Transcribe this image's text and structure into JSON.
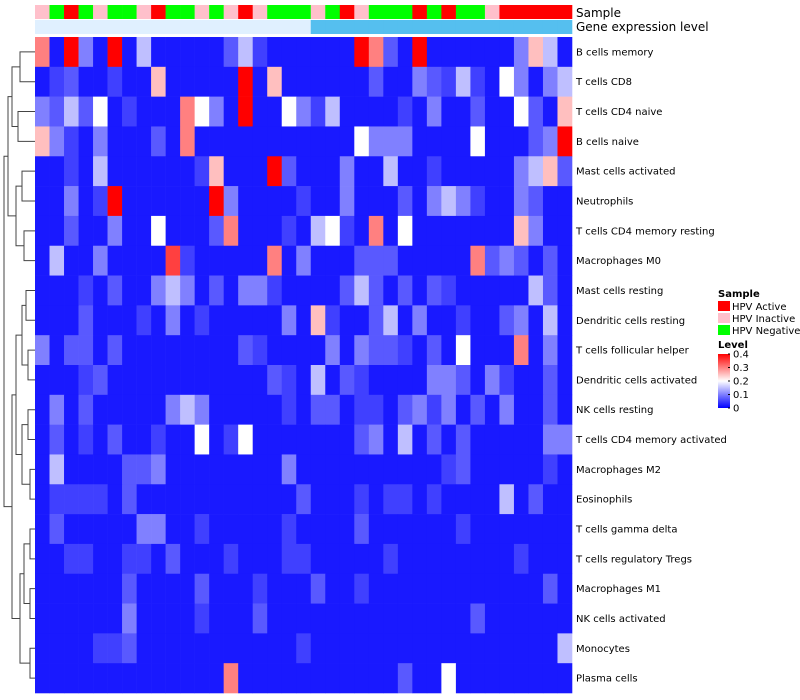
{
  "chart_data": {
    "type": "heatmap",
    "title": "",
    "annotation_rows": [
      {
        "label": "Sample",
        "values": [
          "HPV Inactive",
          "HPV Negative",
          "HPV Active",
          "HPV Negative",
          "HPV Inactive",
          "HPV Negative",
          "HPV Negative",
          "HPV Inactive",
          "HPV Active",
          "HPV Negative",
          "HPV Negative",
          "HPV Inactive",
          "HPV Negative",
          "HPV Inactive",
          "HPV Active",
          "HPV Inactive",
          "HPV Negative",
          "HPV Negative",
          "HPV Negative",
          "HPV Inactive",
          "HPV Negative",
          "HPV Active",
          "HPV Inactive",
          "HPV Negative",
          "HPV Negative",
          "HPV Negative",
          "HPV Active",
          "HPV Negative",
          "HPV Active",
          "HPV Negative",
          "HPV Negative",
          "HPV Inactive",
          "HPV Active",
          "HPV Active",
          "HPV Active",
          "HPV Active",
          "HPV Active"
        ]
      },
      {
        "label": "Gene expression level",
        "values": [
          "low",
          "low",
          "low",
          "low",
          "low",
          "low",
          "low",
          "low",
          "low",
          "low",
          "low",
          "low",
          "low",
          "low",
          "low",
          "low",
          "low",
          "low",
          "low",
          "high",
          "high",
          "high",
          "high",
          "high",
          "high",
          "high",
          "high",
          "high",
          "high",
          "high",
          "high",
          "high",
          "high",
          "high",
          "high",
          "high",
          "high"
        ]
      }
    ],
    "rows": [
      "B cells memory",
      "T cells CD8",
      "T cells CD4 naive",
      "B cells naive",
      "Mast cells activated",
      "Neutrophils",
      "T cells CD4 memory resting",
      "Macrophages M0",
      "Mast cells resting",
      "Dendritic cells resting",
      "T cells follicular helper",
      "Dendritic cells activated",
      "NK cells resting",
      "T cells CD4 memory activated",
      "Macrophages M2",
      "Eosinophils",
      "T cells gamma delta",
      "T cells regulatory  Tregs",
      "Macrophages M1",
      "NK cells activated",
      "Monocytes",
      "Plasma cells"
    ],
    "columns": 37,
    "values": [
      [
        0.3,
        0.02,
        0.4,
        0.1,
        0.02,
        0.4,
        0.02,
        0.15,
        0.02,
        0.02,
        0.02,
        0.02,
        0.02,
        0.07,
        0.15,
        0.05,
        0.02,
        0.02,
        0.02,
        0.02,
        0.02,
        0.02,
        0.4,
        0.3,
        0.07,
        0.02,
        0.4,
        0.02,
        0.02,
        0.02,
        0.02,
        0.02,
        0.02,
        0.1,
        0.25,
        0.15,
        0.02
      ],
      [
        0.02,
        0.05,
        0.07,
        0.02,
        0.02,
        0.05,
        0.02,
        0.02,
        0.25,
        0.02,
        0.02,
        0.02,
        0.02,
        0.02,
        0.4,
        0.02,
        0.25,
        0.02,
        0.02,
        0.02,
        0.02,
        0.02,
        0.02,
        0.07,
        0.02,
        0.02,
        0.1,
        0.07,
        0.05,
        0.15,
        0.05,
        0.02,
        0.2,
        0.1,
        0.02,
        0.1,
        0.15
      ],
      [
        0.1,
        0.07,
        0.15,
        0.07,
        0.2,
        0.02,
        0.05,
        0.02,
        0.02,
        0.02,
        0.3,
        0.2,
        0.1,
        0.02,
        0.4,
        0.02,
        0.02,
        0.2,
        0.1,
        0.05,
        0.15,
        0.02,
        0.02,
        0.02,
        0.02,
        0.05,
        0.02,
        0.1,
        0.02,
        0.02,
        0.07,
        0.02,
        0.02,
        0.2,
        0.07,
        0.02,
        0.25
      ],
      [
        0.25,
        0.1,
        0.05,
        0.02,
        0.1,
        0.02,
        0.02,
        0.02,
        0.07,
        0.02,
        0.3,
        0.02,
        0.02,
        0.02,
        0.02,
        0.02,
        0.02,
        0.02,
        0.02,
        0.02,
        0.02,
        0.02,
        0.2,
        0.1,
        0.1,
        0.1,
        0.02,
        0.02,
        0.02,
        0.02,
        0.2,
        0.02,
        0.02,
        0.02,
        0.07,
        0.1,
        0.4
      ],
      [
        0.02,
        0.02,
        0.05,
        0.02,
        0.15,
        0.02,
        0.02,
        0.02,
        0.02,
        0.02,
        0.02,
        0.05,
        0.25,
        0.02,
        0.02,
        0.02,
        0.4,
        0.07,
        0.02,
        0.02,
        0.02,
        0.1,
        0.02,
        0.02,
        0.15,
        0.02,
        0.02,
        0.05,
        0.02,
        0.02,
        0.02,
        0.02,
        0.02,
        0.1,
        0.15,
        0.25,
        0.07
      ],
      [
        0.02,
        0.02,
        0.1,
        0.02,
        0.05,
        0.4,
        0.02,
        0.02,
        0.02,
        0.02,
        0.02,
        0.02,
        0.4,
        0.1,
        0.02,
        0.02,
        0.02,
        0.02,
        0.05,
        0.02,
        0.02,
        0.1,
        0.02,
        0.02,
        0.02,
        0.07,
        0.02,
        0.1,
        0.15,
        0.1,
        0.05,
        0.02,
        0.02,
        0.1,
        0.07,
        0.02,
        0.02
      ],
      [
        0.02,
        0.02,
        0.07,
        0.02,
        0.02,
        0.1,
        0.02,
        0.02,
        0.2,
        0.02,
        0.02,
        0.02,
        0.07,
        0.3,
        0.02,
        0.02,
        0.02,
        0.05,
        0.02,
        0.15,
        0.2,
        0.05,
        0.02,
        0.3,
        0.02,
        0.2,
        0.02,
        0.02,
        0.02,
        0.02,
        0.02,
        0.02,
        0.02,
        0.25,
        0.1,
        0.02,
        0.02
      ],
      [
        0.02,
        0.15,
        0.02,
        0.02,
        0.1,
        0.02,
        0.02,
        0.02,
        0.02,
        0.35,
        0.05,
        0.02,
        0.02,
        0.02,
        0.02,
        0.02,
        0.3,
        0.02,
        0.1,
        0.02,
        0.02,
        0.02,
        0.07,
        0.07,
        0.07,
        0.02,
        0.02,
        0.02,
        0.02,
        0.02,
        0.3,
        0.07,
        0.1,
        0.07,
        0.02,
        0.07,
        0.02
      ],
      [
        0.02,
        0.02,
        0.02,
        0.05,
        0.02,
        0.07,
        0.02,
        0.02,
        0.1,
        0.15,
        0.1,
        0.02,
        0.07,
        0.02,
        0.1,
        0.1,
        0.05,
        0.02,
        0.02,
        0.02,
        0.02,
        0.07,
        0.15,
        0.07,
        0.02,
        0.07,
        0.02,
        0.07,
        0.05,
        0.02,
        0.02,
        0.02,
        0.02,
        0.02,
        0.15,
        0.07,
        0.02
      ],
      [
        0.02,
        0.02,
        0.02,
        0.07,
        0.02,
        0.02,
        0.02,
        0.05,
        0.02,
        0.1,
        0.02,
        0.05,
        0.02,
        0.02,
        0.02,
        0.02,
        0.02,
        0.1,
        0.02,
        0.25,
        0.05,
        0.02,
        0.02,
        0.07,
        0.15,
        0.02,
        0.1,
        0.02,
        0.02,
        0.05,
        0.02,
        0.02,
        0.07,
        0.1,
        0.02,
        0.15,
        0.02
      ],
      [
        0.1,
        0.02,
        0.07,
        0.07,
        0.02,
        0.07,
        0.02,
        0.02,
        0.02,
        0.02,
        0.02,
        0.02,
        0.02,
        0.02,
        0.07,
        0.05,
        0.02,
        0.02,
        0.02,
        0.02,
        0.1,
        0.02,
        0.1,
        0.07,
        0.07,
        0.05,
        0.02,
        0.07,
        0.02,
        0.2,
        0.02,
        0.02,
        0.02,
        0.3,
        0.02,
        0.1,
        0.02
      ],
      [
        0.02,
        0.02,
        0.02,
        0.05,
        0.07,
        0.02,
        0.02,
        0.02,
        0.02,
        0.02,
        0.02,
        0.02,
        0.02,
        0.02,
        0.02,
        0.02,
        0.07,
        0.05,
        0.02,
        0.15,
        0.02,
        0.07,
        0.05,
        0.02,
        0.02,
        0.02,
        0.02,
        0.1,
        0.1,
        0.07,
        0.02,
        0.1,
        0.05,
        0.02,
        0.02,
        0.07,
        0.02
      ],
      [
        0.02,
        0.1,
        0.02,
        0.07,
        0.02,
        0.02,
        0.02,
        0.02,
        0.02,
        0.1,
        0.15,
        0.1,
        0.02,
        0.02,
        0.02,
        0.02,
        0.02,
        0.05,
        0.02,
        0.07,
        0.07,
        0.02,
        0.05,
        0.05,
        0.02,
        0.07,
        0.1,
        0.05,
        0.1,
        0.02,
        0.07,
        0.02,
        0.1,
        0.02,
        0.02,
        0.07,
        0.02
      ],
      [
        0.02,
        0.07,
        0.02,
        0.05,
        0.02,
        0.07,
        0.02,
        0.02,
        0.05,
        0.02,
        0.02,
        0.2,
        0.02,
        0.05,
        0.2,
        0.02,
        0.02,
        0.02,
        0.02,
        0.02,
        0.02,
        0.02,
        0.07,
        0.1,
        0.02,
        0.15,
        0.02,
        0.07,
        0.02,
        0.07,
        0.02,
        0.02,
        0.02,
        0.02,
        0.02,
        0.1,
        0.1
      ],
      [
        0.02,
        0.15,
        0.02,
        0.02,
        0.02,
        0.02,
        0.07,
        0.07,
        0.1,
        0.02,
        0.02,
        0.02,
        0.02,
        0.02,
        0.02,
        0.02,
        0.02,
        0.1,
        0.02,
        0.02,
        0.02,
        0.02,
        0.02,
        0.02,
        0.02,
        0.02,
        0.02,
        0.02,
        0.05,
        0.07,
        0.02,
        0.02,
        0.02,
        0.02,
        0.02,
        0.05,
        0.02
      ],
      [
        0.02,
        0.05,
        0.05,
        0.05,
        0.05,
        0.02,
        0.07,
        0.02,
        0.02,
        0.02,
        0.02,
        0.02,
        0.02,
        0.02,
        0.02,
        0.02,
        0.02,
        0.02,
        0.07,
        0.02,
        0.02,
        0.02,
        0.05,
        0.02,
        0.05,
        0.05,
        0.02,
        0.05,
        0.02,
        0.02,
        0.02,
        0.02,
        0.15,
        0.02,
        0.07,
        0.02,
        0.02
      ],
      [
        0.02,
        0.07,
        0.02,
        0.02,
        0.02,
        0.02,
        0.02,
        0.1,
        0.1,
        0.02,
        0.02,
        0.05,
        0.02,
        0.02,
        0.02,
        0.02,
        0.02,
        0.05,
        0.02,
        0.02,
        0.02,
        0.02,
        0.07,
        0.02,
        0.02,
        0.02,
        0.02,
        0.02,
        0.02,
        0.05,
        0.02,
        0.02,
        0.02,
        0.02,
        0.02,
        0.02,
        0.02
      ],
      [
        0.02,
        0.02,
        0.05,
        0.05,
        0.02,
        0.02,
        0.05,
        0.05,
        0.02,
        0.07,
        0.02,
        0.02,
        0.02,
        0.05,
        0.02,
        0.02,
        0.02,
        0.05,
        0.05,
        0.02,
        0.02,
        0.02,
        0.02,
        0.02,
        0.05,
        0.02,
        0.02,
        0.02,
        0.02,
        0.02,
        0.02,
        0.02,
        0.02,
        0.05,
        0.02,
        0.02,
        0.02
      ],
      [
        0.02,
        0.02,
        0.02,
        0.02,
        0.02,
        0.02,
        0.07,
        0.02,
        0.02,
        0.02,
        0.02,
        0.07,
        0.02,
        0.02,
        0.02,
        0.05,
        0.02,
        0.02,
        0.02,
        0.07,
        0.02,
        0.02,
        0.05,
        0.02,
        0.02,
        0.02,
        0.02,
        0.02,
        0.02,
        0.02,
        0.02,
        0.02,
        0.02,
        0.02,
        0.02,
        0.07,
        0.02
      ],
      [
        0.02,
        0.02,
        0.02,
        0.02,
        0.02,
        0.02,
        0.1,
        0.02,
        0.02,
        0.02,
        0.02,
        0.05,
        0.02,
        0.02,
        0.02,
        0.07,
        0.02,
        0.02,
        0.02,
        0.02,
        0.02,
        0.02,
        0.02,
        0.02,
        0.02,
        0.02,
        0.02,
        0.02,
        0.02,
        0.02,
        0.07,
        0.02,
        0.02,
        0.02,
        0.02,
        0.02,
        0.02
      ],
      [
        0.02,
        0.02,
        0.02,
        0.02,
        0.05,
        0.05,
        0.07,
        0.02,
        0.02,
        0.02,
        0.02,
        0.02,
        0.02,
        0.02,
        0.02,
        0.02,
        0.02,
        0.02,
        0.05,
        0.02,
        0.02,
        0.02,
        0.02,
        0.02,
        0.02,
        0.02,
        0.02,
        0.02,
        0.02,
        0.02,
        0.02,
        0.02,
        0.02,
        0.02,
        0.02,
        0.02,
        0.15
      ],
      [
        0.02,
        0.02,
        0.02,
        0.02,
        0.02,
        0.02,
        0.02,
        0.02,
        0.02,
        0.02,
        0.02,
        0.02,
        0.02,
        0.3,
        0.02,
        0.02,
        0.02,
        0.02,
        0.02,
        0.02,
        0.02,
        0.02,
        0.02,
        0.02,
        0.02,
        0.07,
        0.02,
        0.02,
        0.2,
        0.02,
        0.02,
        0.02,
        0.02,
        0.02,
        0.02,
        0.02,
        0.02
      ]
    ],
    "color_scale": {
      "min": 0,
      "mid": 0.2,
      "max": 0.4,
      "low_color": "#0000FF",
      "mid_color": "#FFFFFF",
      "high_color": "#FF0000"
    },
    "legend": {
      "sample_title": "Sample",
      "sample_entries": [
        {
          "label": "HPV Active",
          "color": "#FF0000"
        },
        {
          "label": "HPV Inactive",
          "color": "#FFC0CB"
        },
        {
          "label": "HPV Negative",
          "color": "#00FF00"
        }
      ],
      "level_title": "Level",
      "level_ticks": [
        0.4,
        0.3,
        0.2,
        0.1,
        0
      ],
      "level_tick_labels": [
        "0.4",
        "0.3",
        "0.2",
        "0.1",
        "0"
      ]
    },
    "gene_expression_colors": {
      "low": "#E0F0FF",
      "high": "#55BFEF"
    },
    "legend_position": "right"
  }
}
